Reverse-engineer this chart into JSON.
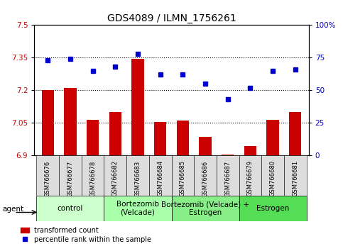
{
  "title": "GDS4089 / ILMN_1756261",
  "samples": [
    "GSM766676",
    "GSM766677",
    "GSM766678",
    "GSM766682",
    "GSM766683",
    "GSM766684",
    "GSM766685",
    "GSM766686",
    "GSM766687",
    "GSM766679",
    "GSM766680",
    "GSM766681"
  ],
  "bar_values": [
    7.2,
    7.21,
    7.065,
    7.1,
    7.345,
    7.055,
    7.06,
    6.985,
    6.905,
    6.945,
    7.065,
    7.1
  ],
  "bar_base": 6.9,
  "dot_values": [
    73,
    74,
    65,
    68,
    78,
    62,
    62,
    55,
    43,
    52,
    65,
    66
  ],
  "ylim_left": [
    6.9,
    7.5
  ],
  "ylim_right": [
    0,
    100
  ],
  "yticks_left": [
    6.9,
    7.05,
    7.2,
    7.35,
    7.5
  ],
  "yticks_right": [
    0,
    25,
    50,
    75,
    100
  ],
  "hlines": [
    7.05,
    7.2,
    7.35
  ],
  "groups": [
    {
      "label": "control",
      "start": 0,
      "end": 3,
      "color": "#ccffcc"
    },
    {
      "label": "Bortezomib\n(Velcade)",
      "start": 3,
      "end": 6,
      "color": "#aaffaa"
    },
    {
      "label": "Bortezomib (Velcade) +\nEstrogen",
      "start": 6,
      "end": 9,
      "color": "#88ee88"
    },
    {
      "label": "Estrogen",
      "start": 9,
      "end": 12,
      "color": "#55dd55"
    }
  ],
  "bar_color": "#cc0000",
  "dot_color": "#0000cc",
  "bar_width": 0.55,
  "legend_red_label": "transformed count",
  "legend_blue_label": "percentile rank within the sample",
  "agent_label": "agent",
  "left_label_color": "#cc0000",
  "right_label_color": "#0000cc",
  "tick_label_fontsize": 7.5,
  "group_fontsize": 7.5,
  "title_fontsize": 10
}
